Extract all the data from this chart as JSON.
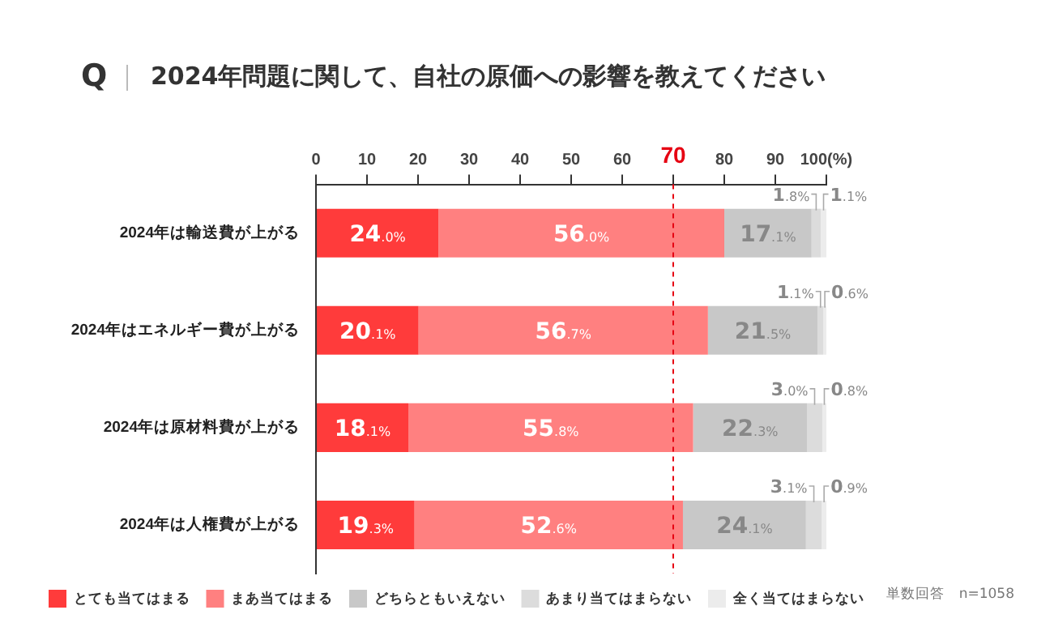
{
  "chart_data": {
    "type": "bar",
    "orientation": "horizontal",
    "stacked": true,
    "title": "2024年問題に関して、自社の原価への影響を教えてください",
    "categories": [
      "2024年は輸送費が上がる",
      "2024年はエネルギー費が上がる",
      "2024年は原材料費が上がる",
      "2024年は人権費が上がる"
    ],
    "series": [
      {
        "name": "とても当てはまる",
        "color": "#ff3b3b",
        "values": [
          24.0,
          20.1,
          18.1,
          19.3
        ],
        "value_labels": [
          "24.0%",
          "20.1%",
          "18.1%",
          "19.3%"
        ]
      },
      {
        "name": "まあ当てはまる",
        "color": "#ff8080",
        "values": [
          56.0,
          56.7,
          55.8,
          52.6
        ],
        "value_labels": [
          "56.0%",
          "56.7%",
          "55.8%",
          "52.6%"
        ]
      },
      {
        "name": "どちらともいえない",
        "color": "#c8c8c8",
        "values": [
          17.1,
          21.5,
          22.3,
          24.1
        ],
        "value_labels": [
          "17.1%",
          "21.5%",
          "22.3%",
          "24.1%"
        ]
      },
      {
        "name": "あまり当てはまらない",
        "color": "#dcdcdc",
        "values": [
          1.8,
          1.1,
          3.0,
          3.1
        ],
        "value_labels": [
          "1.8%",
          "1.1%",
          "3.0%",
          "3.1%"
        ]
      },
      {
        "name": "全く当てはまらない",
        "color": "#ececec",
        "values": [
          1.1,
          0.6,
          0.8,
          0.9
        ],
        "value_labels": [
          "1.1%",
          "0.6%",
          "0.8%",
          "0.9%"
        ]
      }
    ],
    "xlim": [
      0,
      100
    ],
    "xticks": [
      0,
      10,
      20,
      30,
      40,
      50,
      60,
      70,
      80,
      90,
      {
        "value": 100,
        "label": "100(%)"
      }
    ],
    "ref_lines": [
      {
        "axis": "x",
        "value": 70,
        "color": "#e60012",
        "line_style": "dashed"
      }
    ],
    "grid": false,
    "legend": "bottom",
    "annotations": [
      "Q",
      "単数回答　n=1058"
    ]
  }
}
